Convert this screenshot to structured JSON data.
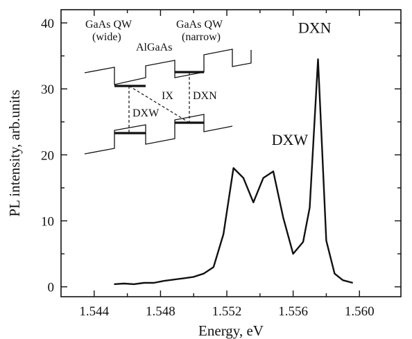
{
  "chart_data": {
    "type": "line",
    "title": "",
    "xlabel": "Energy, eV",
    "ylabel": "PL intensity, arb.units",
    "xlim": [
      1.542,
      1.5625
    ],
    "ylim": [
      -1.5,
      42
    ],
    "xticks": [
      1.544,
      1.548,
      1.552,
      1.556,
      1.56
    ],
    "xtick_labels": [
      "1.544",
      "1.548",
      "1.552",
      "1.556",
      "1.560"
    ],
    "xticks_minor": [
      1.546,
      1.55,
      1.554,
      1.558
    ],
    "yticks": [
      0,
      10,
      20,
      30,
      40
    ],
    "ytick_labels": [
      "0",
      "10",
      "20",
      "30",
      "40"
    ],
    "yticks_minor": [
      5,
      15,
      25,
      35
    ],
    "grid": false,
    "series": [
      {
        "x": [
          1.5452,
          1.5458,
          1.5464,
          1.547,
          1.5476,
          1.5482,
          1.5488,
          1.5494,
          1.55,
          1.5506,
          1.5512,
          1.5518,
          1.5524,
          1.553,
          1.5536,
          1.5542,
          1.5548,
          1.5554,
          1.556,
          1.5566,
          1.557,
          1.5575,
          1.558,
          1.5585,
          1.559,
          1.5596
        ],
        "y": [
          0.4,
          0.5,
          0.4,
          0.6,
          0.6,
          0.9,
          1.1,
          1.3,
          1.5,
          2.0,
          3.0,
          8.0,
          18.0,
          16.5,
          12.8,
          16.5,
          17.5,
          10.5,
          5.0,
          6.8,
          12.0,
          34.5,
          7.0,
          2.0,
          1.0,
          0.6
        ]
      }
    ],
    "annotations": [
      {
        "text": "DXW",
        "x": 1.5558,
        "y": 21.5
      },
      {
        "text": "DXN",
        "x": 1.5573,
        "y": 38.5
      }
    ]
  },
  "inset": {
    "labels": {
      "qw_wide_1": "GaAs QW",
      "qw_wide_2": "(wide)",
      "barrier": "AlGaAs",
      "qw_narrow_1": "GaAs QW",
      "qw_narrow_2": "(narrow)",
      "ix": "IX",
      "dxn": "DXN",
      "dxw": "DXW"
    }
  }
}
